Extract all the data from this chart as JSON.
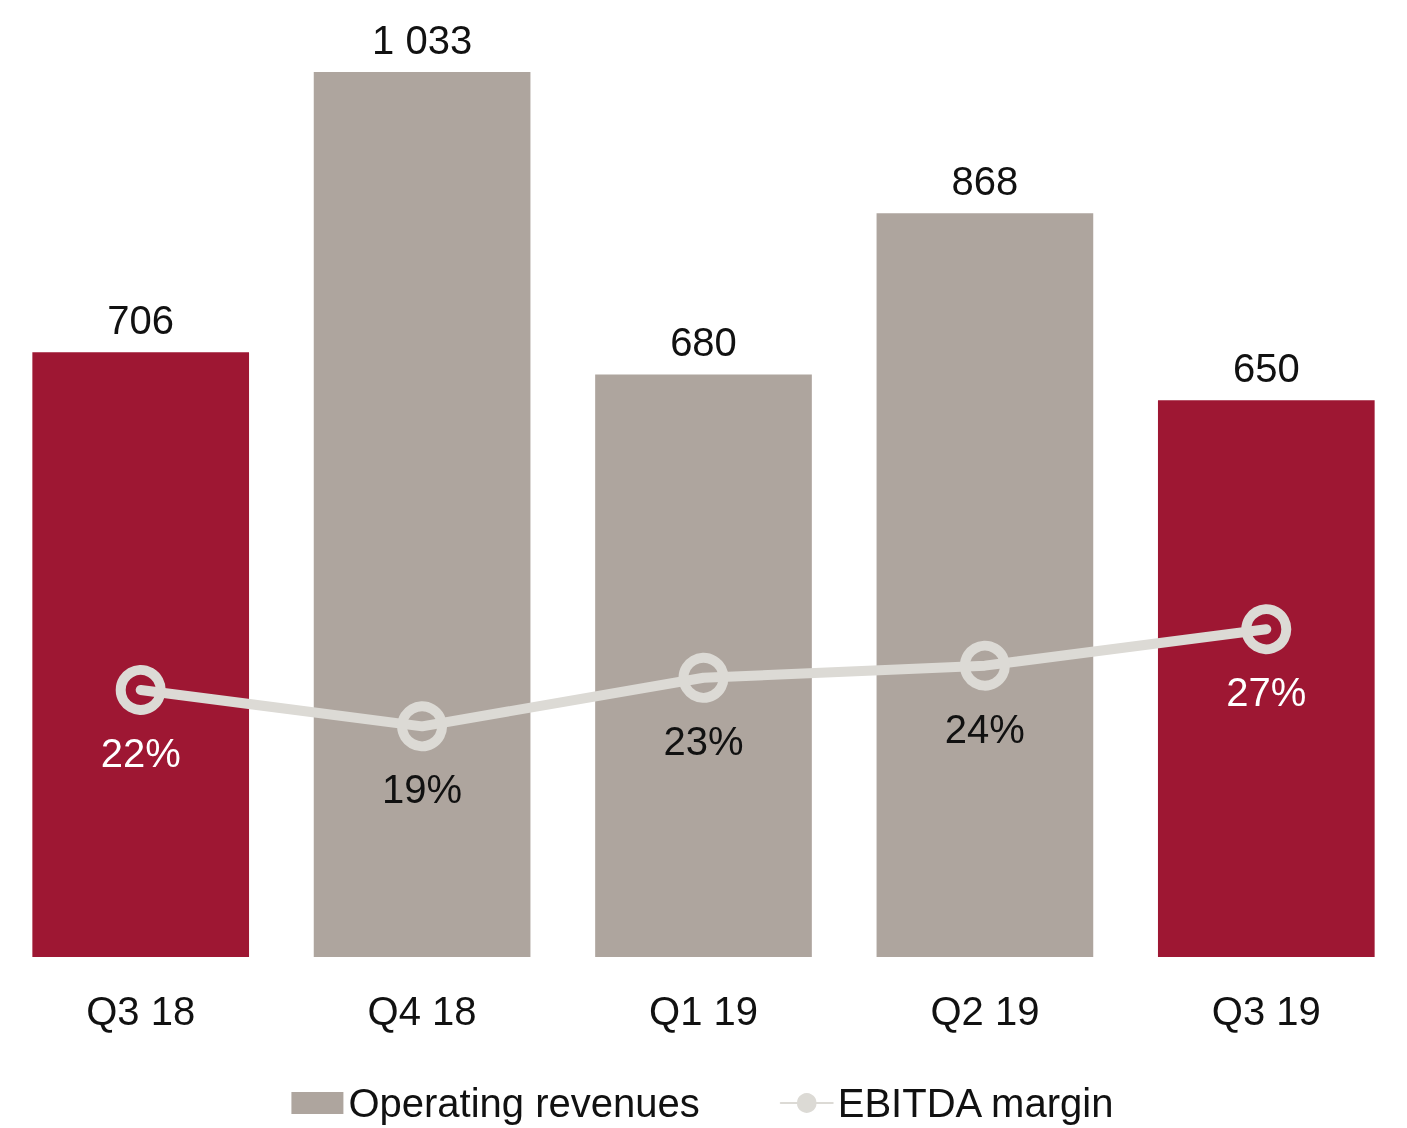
{
  "chart_data": {
    "type": "bar",
    "categories": [
      "Q3 18",
      "Q4 18",
      "Q1 19",
      "Q2 19",
      "Q3 19"
    ],
    "series": [
      {
        "name": "Operating revenues",
        "color": "#aea59e",
        "colors": [
          "#9e1733",
          "#aea59e",
          "#aea59e",
          "#aea59e",
          "#9e1733"
        ],
        "values": [
          706,
          1033,
          680,
          868,
          650
        ],
        "value_labels": [
          "706",
          "1 033",
          "680",
          "868",
          "650"
        ]
      },
      {
        "name": "EBITDA margin",
        "type": "line",
        "axis": "y2",
        "color": "#dcdad5",
        "values": [
          22,
          19,
          23,
          24,
          27
        ],
        "value_labels": [
          "22%",
          "19%",
          "23%",
          "24%",
          "27%"
        ]
      }
    ],
    "grid": false,
    "legend": "bottom",
    "marker": "circle",
    "line_style": "solid"
  }
}
